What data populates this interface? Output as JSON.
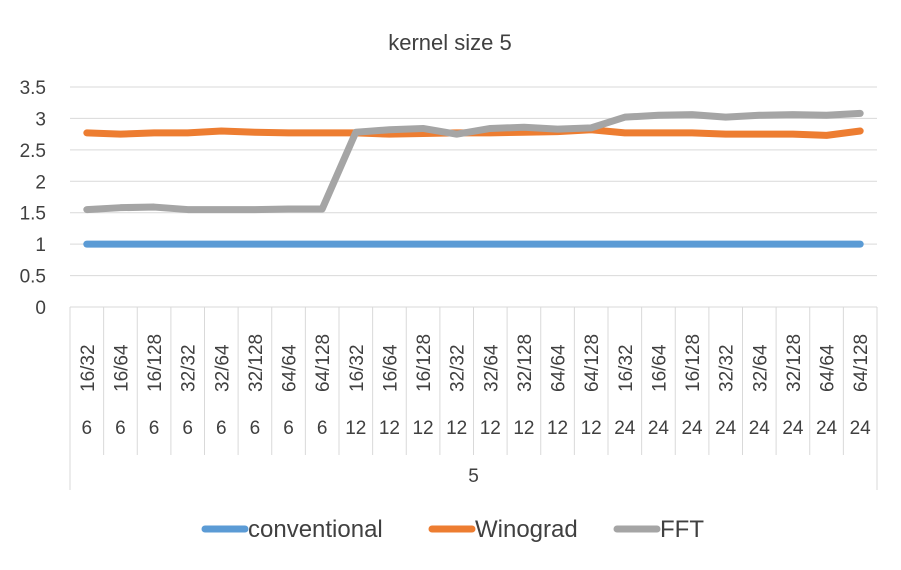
{
  "chart_data": {
    "type": "line",
    "title": "kernel size 5",
    "ylim": [
      0,
      3.5
    ],
    "yticks": [
      "0",
      "0.5",
      "1",
      "1.5",
      "2",
      "2.5",
      "3",
      "3.5"
    ],
    "gridlines": true,
    "legend_position": "bottom",
    "categories": {
      "level1": [
        "16/32",
        "16/64",
        "16/128",
        "32/32",
        "32/64",
        "32/128",
        "64/64",
        "64/128",
        "16/32",
        "16/64",
        "16/128",
        "32/32",
        "32/64",
        "32/128",
        "64/64",
        "64/128",
        "16/32",
        "16/64",
        "16/128",
        "32/32",
        "32/64",
        "32/128",
        "64/64",
        "64/128"
      ],
      "level2": [
        "6",
        "6",
        "6",
        "6",
        "6",
        "6",
        "6",
        "6",
        "12",
        "12",
        "12",
        "12",
        "12",
        "12",
        "12",
        "12",
        "24",
        "24",
        "24",
        "24",
        "24",
        "24",
        "24",
        "24"
      ],
      "level3": [
        "5"
      ]
    },
    "series": [
      {
        "name": "conventional",
        "color": "#5b9bd5",
        "values": [
          1,
          1,
          1,
          1,
          1,
          1,
          1,
          1,
          1,
          1,
          1,
          1,
          1,
          1,
          1,
          1,
          1,
          1,
          1,
          1,
          1,
          1,
          1,
          1
        ]
      },
      {
        "name": "Winograd",
        "color": "#ed7d31",
        "values": [
          2.77,
          2.75,
          2.77,
          2.77,
          2.8,
          2.78,
          2.77,
          2.77,
          2.77,
          2.75,
          2.76,
          2.77,
          2.77,
          2.78,
          2.79,
          2.82,
          2.77,
          2.77,
          2.77,
          2.75,
          2.75,
          2.75,
          2.73,
          2.8
        ]
      },
      {
        "name": "FFT",
        "color": "#a5a5a5",
        "values": [
          1.55,
          1.58,
          1.59,
          1.55,
          1.55,
          1.55,
          1.56,
          1.56,
          2.78,
          2.82,
          2.84,
          2.75,
          2.84,
          2.86,
          2.83,
          2.85,
          3.02,
          3.05,
          3.06,
          3.02,
          3.05,
          3.06,
          3.05,
          3.08
        ]
      }
    ]
  }
}
